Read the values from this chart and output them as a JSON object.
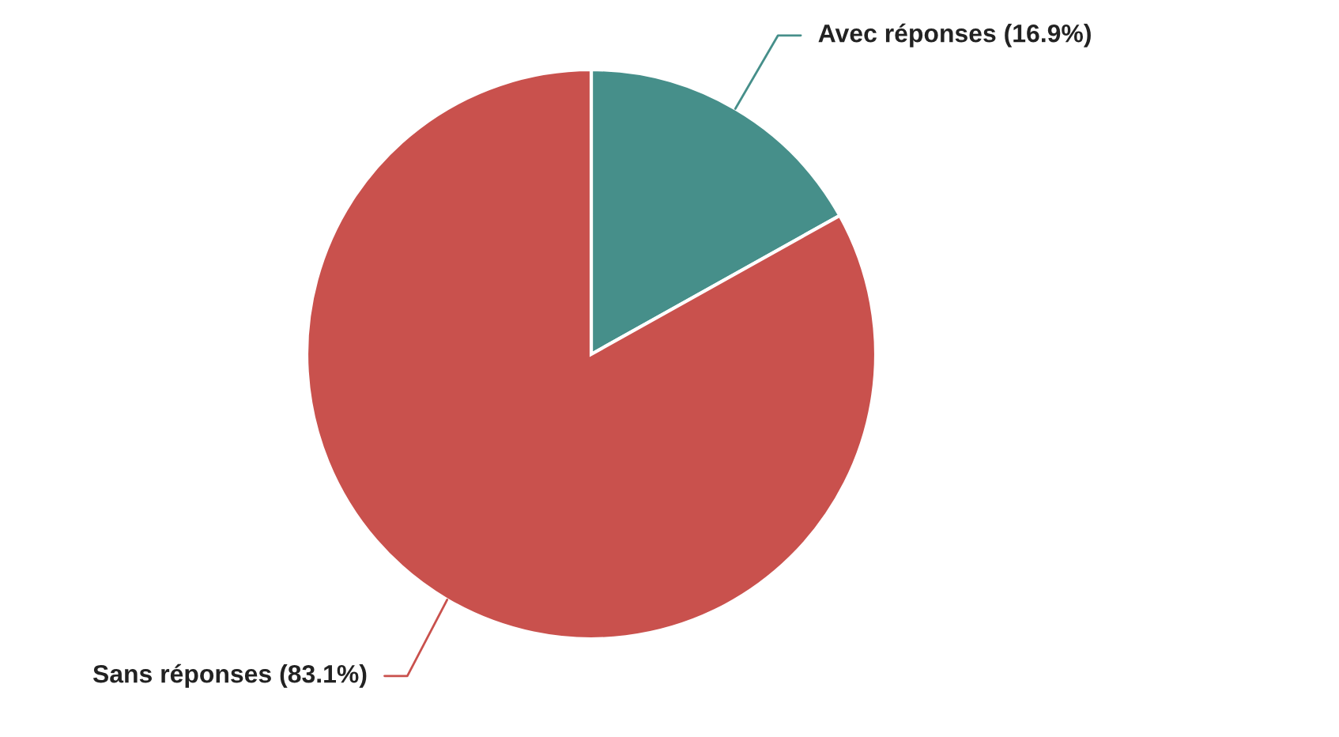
{
  "chart_data": {
    "type": "pie",
    "categories": [
      "Avec réponses",
      "Sans réponses"
    ],
    "values": [
      16.9,
      83.1
    ],
    "colors": [
      "#468f8a",
      "#c9514d"
    ],
    "value_labels": [
      "(16.9%)",
      "(83.1%)"
    ],
    "legend": false
  }
}
